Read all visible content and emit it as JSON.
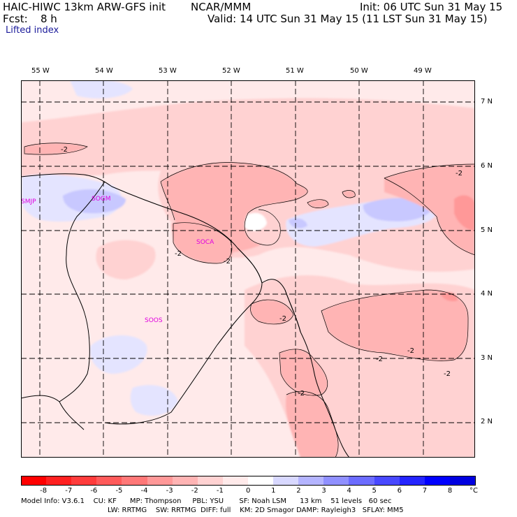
{
  "header": {
    "model_line": "HAIC-HIWC 13km ARW-GFS init",
    "org": "NCAR/MMM",
    "init": "Init: 06 UTC Sun 31 May 15",
    "fcst_label": "Fcst:",
    "fcst_value": "8 h",
    "valid": "Valid: 14 UTC Sun 31 May 15 (11 LST Sun 31 May 15)",
    "field": "Lifted index"
  },
  "longitude_labels": [
    "55 W",
    "54 W",
    "53 W",
    "52 W",
    "51 W",
    "50 W",
    "49 W"
  ],
  "latitude_labels": [
    "7 N",
    "6 N",
    "5 N",
    "4 N",
    "3 N",
    "2 N"
  ],
  "stations": [
    "SMJP",
    "SOGM",
    "SOCA",
    "SOOS"
  ],
  "contour_label": "-2",
  "colorbar": {
    "labels": [
      "-8",
      "-7",
      "-6",
      "-5",
      "-4",
      "-3",
      "-2",
      "-1",
      "0",
      "1",
      "2",
      "3",
      "4",
      "5",
      "6",
      "7",
      "8"
    ],
    "unit": "°C",
    "colors": [
      "#ff0000",
      "#ff2020",
      "#ff3c3c",
      "#ff5a5a",
      "#ff7878",
      "#ff9898",
      "#ffb4b4",
      "#ffd2d2",
      "#ffeaea",
      "#ffffff",
      "#d8d8ff",
      "#b4b4ff",
      "#9090ff",
      "#6c6cff",
      "#4848ff",
      "#2424ff",
      "#0000ff",
      "#0000e0"
    ]
  },
  "model_info": {
    "line1": "Model Info: V3.6.1    CU: KF      MP: Thompson     PBL: YSU       SF: Noah LSM      13 km    51 levels   60 sec",
    "line2": "LW: RRTMG    SW: RRTMG  DIFF: full    KM: 2D Smagor DAMP: Rayleigh3   SFLAY: MM5"
  }
}
